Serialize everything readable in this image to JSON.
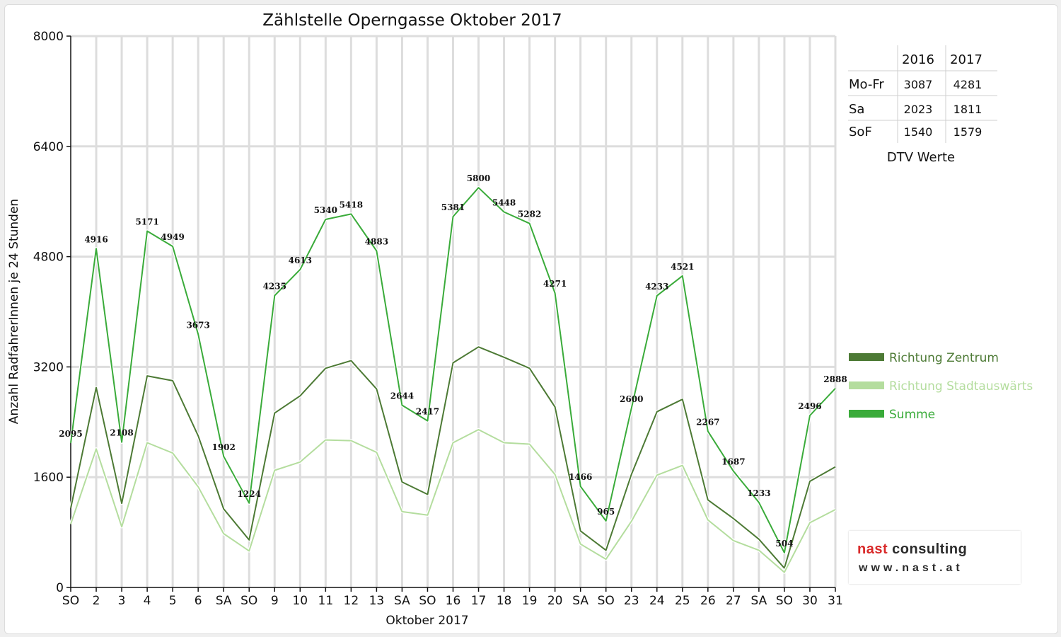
{
  "chart_data": {
    "type": "line",
    "title": "Zählstelle Operngasse Oktober 2017",
    "xlabel": "Oktober 2017",
    "ylabel": "Anzahl RadfahrerInnen je 24 Stunden",
    "ylim": [
      0,
      8000
    ],
    "yticks": [
      0,
      1600,
      3200,
      4800,
      6400,
      8000
    ],
    "grid": true,
    "legend_position": "right",
    "categories": [
      "SO",
      "2",
      "3",
      "4",
      "5",
      "6",
      "SA",
      "SO",
      "9",
      "10",
      "11",
      "12",
      "13",
      "SA",
      "SO",
      "16",
      "17",
      "18",
      "19",
      "20",
      "SA",
      "SO",
      "23",
      "24",
      "25",
      "26",
      "27",
      "SA",
      "SO",
      "30",
      "31"
    ],
    "red_categories": [
      0,
      7,
      14,
      21,
      25,
      28
    ],
    "series": [
      {
        "name": "Richtung Zentrum",
        "color": "#4d7a35",
        "values": [
          1150,
          2900,
          1220,
          3070,
          3000,
          2200,
          1140,
          690,
          2530,
          2780,
          3180,
          3290,
          2880,
          1530,
          1350,
          3260,
          3490,
          3340,
          3180,
          2620,
          820,
          540,
          1640,
          2550,
          2730,
          1270,
          1000,
          700,
          280,
          1540,
          1750
        ]
      },
      {
        "name": "Richtung Stadtauswärts",
        "color": "#b4dd9e",
        "values": [
          920,
          2010,
          880,
          2100,
          1950,
          1460,
          780,
          530,
          1700,
          1820,
          2140,
          2130,
          1960,
          1100,
          1050,
          2100,
          2290,
          2100,
          2080,
          1640,
          630,
          410,
          960,
          1630,
          1770,
          980,
          680,
          540,
          220,
          940,
          1130
        ]
      },
      {
        "name": "Summe",
        "color": "#3aab3a",
        "values": [
          2095,
          4916,
          2108,
          5171,
          4949,
          3673,
          1902,
          1224,
          4235,
          4613,
          5340,
          5418,
          4883,
          2644,
          2417,
          5381,
          5800,
          5448,
          5282,
          4271,
          1466,
          965,
          2600,
          4233,
          4521,
          2267,
          1687,
          1233,
          504,
          2496,
          2888
        ]
      }
    ],
    "data_labels": [
      "2095",
      "4916",
      "2108",
      "5171",
      "4949",
      "3673",
      "1902",
      "1224",
      "4235",
      "4613",
      "5340",
      "5418",
      "4883",
      "2644",
      "2417",
      "5381",
      "5800",
      "5448",
      "5282",
      "4271",
      "1466",
      "965",
      "2600",
      "4233",
      "4521",
      "2267",
      "1687",
      "1233",
      "504",
      "2496",
      "2888"
    ]
  },
  "dtv_table": {
    "caption": "DTV Werte",
    "headers": [
      "",
      "2016",
      "2017"
    ],
    "rows": [
      {
        "label": "Mo-Fr",
        "v2016": "3087",
        "v2017": "4281"
      },
      {
        "label": "Sa",
        "v2016": "2023",
        "v2017": "1811"
      },
      {
        "label": "SoF",
        "v2016": "1540",
        "v2017": "1579"
      }
    ]
  },
  "logo": {
    "word1": "nast",
    "word2": " consulting",
    "url": "www.nast.at"
  }
}
